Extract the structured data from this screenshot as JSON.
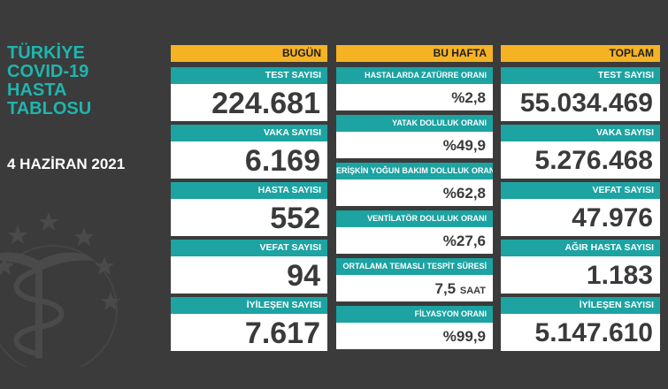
{
  "title_lines": [
    "TÜRKİYE",
    "COVID-19",
    "HASTA",
    "TABLOSU"
  ],
  "date": "4 HAZİRAN 2021",
  "colors": {
    "accent": "#1ca3a2",
    "header": "#f5b324",
    "background": "#3b3b3b"
  },
  "today": {
    "header": "BUGÜN",
    "items": [
      {
        "label": "TEST SAYISI",
        "value": "224.681"
      },
      {
        "label": "VAKA SAYISI",
        "value": "6.169"
      },
      {
        "label": "HASTA SAYISI",
        "value": "552"
      },
      {
        "label": "VEFAT SAYISI",
        "value": "94"
      },
      {
        "label": "İYİLEŞEN SAYISI",
        "value": "7.617"
      }
    ]
  },
  "week": {
    "header": "BU HAFTA",
    "items": [
      {
        "label": "HASTALARDA ZATÜRRE ORANI",
        "value": "%2,8",
        "unit": ""
      },
      {
        "label": "YATAK DOLULUK ORANI",
        "value": "%49,9",
        "unit": ""
      },
      {
        "label": "ERİŞKİN YOĞUN BAKIM DOLULUK ORANI",
        "value": "%62,8",
        "unit": ""
      },
      {
        "label": "VENTİLATÖR DOLULUK ORANI",
        "value": "%27,6",
        "unit": ""
      },
      {
        "label": "ORTALAMA TEMASLI TESPİT SÜRESİ",
        "value": "7,5",
        "unit": "SAAT"
      },
      {
        "label": "FİLYASYON ORANI",
        "value": "%99,9",
        "unit": ""
      }
    ]
  },
  "total": {
    "header": "TOPLAM",
    "items": [
      {
        "label": "TEST SAYISI",
        "value": "55.034.469"
      },
      {
        "label": "VAKA SAYISI",
        "value": "5.276.468"
      },
      {
        "label": "VEFAT SAYISI",
        "value": "47.976"
      },
      {
        "label": "AĞIR HASTA SAYISI",
        "value": "1.183"
      },
      {
        "label": "İYİLEŞEN SAYISI",
        "value": "5.147.610"
      }
    ]
  }
}
